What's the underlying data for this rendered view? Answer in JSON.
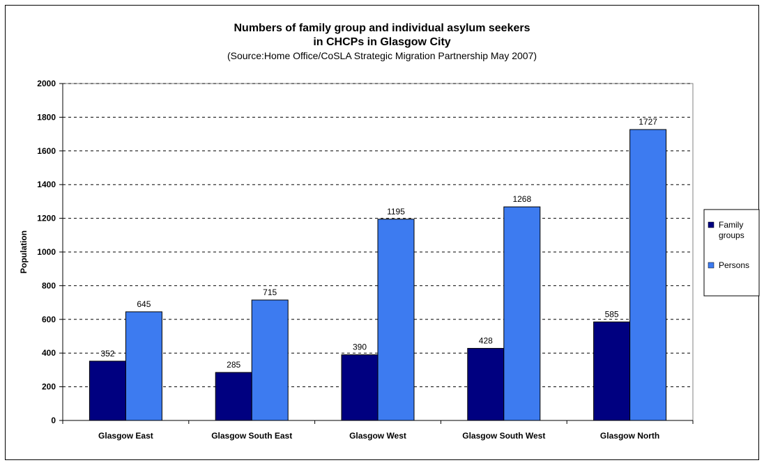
{
  "chart_data": {
    "type": "bar",
    "title_line1": "Numbers of family group and individual asylum seekers",
    "title_line2": "in CHCPs in Glasgow City",
    "subtitle": "(Source:Home Office/CoSLA Strategic Migration Partnership May 2007)",
    "xlabel": "",
    "ylabel": "Population",
    "ylim": [
      0,
      2000
    ],
    "yticks": [
      0,
      200,
      400,
      600,
      800,
      1000,
      1200,
      1400,
      1600,
      1800,
      2000
    ],
    "grid": "horizontal-dashed",
    "legend_position": "right",
    "categories": [
      "Glasgow East",
      "Glasgow South East",
      "Glasgow West",
      "Glasgow South West",
      "Glasgow North"
    ],
    "series": [
      {
        "name": "Family groups",
        "legend_lines": [
          "Family",
          "groups"
        ],
        "color": "#000080",
        "values": [
          352,
          285,
          390,
          428,
          585
        ]
      },
      {
        "name": "Persons",
        "legend_lines": [
          "Persons"
        ],
        "color": "#3D7BF0",
        "values": [
          645,
          715,
          1195,
          1268,
          1727
        ]
      }
    ]
  }
}
